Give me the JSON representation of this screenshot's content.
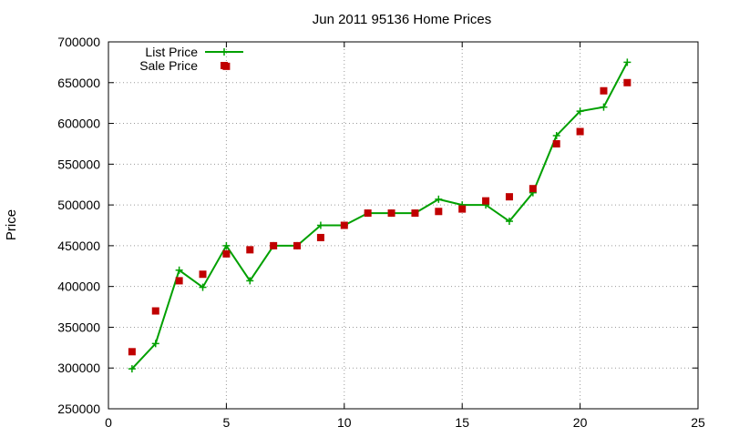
{
  "chart_data": {
    "type": "line",
    "title": "Jun 2011 95136 Home Prices",
    "xlabel": "",
    "ylabel": "Price",
    "xlim": [
      0,
      25
    ],
    "ylim": [
      250000,
      700000
    ],
    "x_ticks": [
      0,
      5,
      10,
      15,
      20,
      25
    ],
    "y_ticks": [
      250000,
      300000,
      350000,
      400000,
      450000,
      500000,
      550000,
      600000,
      650000,
      700000
    ],
    "grid": true,
    "legend_position": "top-left",
    "series": [
      {
        "name": "List Price",
        "style": "line-with-plus-markers",
        "color": "#00a000",
        "x": [
          1,
          2,
          3,
          4,
          5,
          6,
          7,
          8,
          9,
          10,
          11,
          12,
          13,
          14,
          15,
          16,
          17,
          18,
          19,
          20,
          21,
          22
        ],
        "y": [
          299000,
          330000,
          420000,
          399000,
          450000,
          407000,
          450000,
          450000,
          475000,
          475000,
          490000,
          490000,
          490000,
          507000,
          500000,
          500000,
          480000,
          515000,
          585000,
          615000,
          620000,
          675000
        ]
      },
      {
        "name": "Sale Price",
        "style": "square-points",
        "color": "#c00000",
        "x": [
          1,
          2,
          3,
          4,
          5,
          5,
          6,
          7,
          8,
          9,
          10,
          11,
          12,
          13,
          14,
          15,
          16,
          17,
          18,
          19,
          20,
          21,
          22
        ],
        "y": [
          320000,
          370000,
          407000,
          415000,
          670000,
          440000,
          445000,
          450000,
          450000,
          460000,
          475000,
          490000,
          490000,
          490000,
          492000,
          495000,
          505000,
          510000,
          520000,
          575000,
          590000,
          640000,
          650000
        ]
      }
    ]
  }
}
